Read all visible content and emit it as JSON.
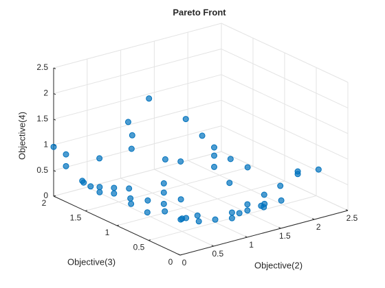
{
  "chart_data": {
    "type": "scatter3d",
    "title": "Pareto Front",
    "xlabel": "Objective(2)",
    "ylabel": "Objective(3)",
    "zlabel": "Objective(4)",
    "x": [
      0,
      0.09,
      0.09,
      0.4,
      0.05,
      0.07,
      0.08,
      0.12,
      0.12,
      0.24,
      0.24,
      0.37,
      0.39,
      0.4,
      0.95,
      0.64,
      0.7,
      0.69,
      0.91,
      0.7,
      0.7,
      0.7,
      0.46,
      0.36,
      0.62,
      0.95,
      0.86,
      1.31,
      1.46,
      1.45,
      1.45,
      1.45,
      1.6,
      1.76,
      1.49,
      0.5,
      0.48,
      0.56,
      0.73,
      0.75,
      0.9,
      1.15,
      1.15,
      1.26,
      1.38,
      1.38,
      1.63,
      1.54,
      1.49,
      1.53,
      1.87,
      1.79,
      2.13,
      2.13,
      2.44
    ],
    "y": [
      2,
      1.9,
      1.9,
      1.7,
      1.6,
      1.6,
      1.5,
      1.4,
      1.4,
      1.3,
      1.3,
      1.2,
      1.2,
      1.2,
      1.5,
      1.5,
      1.5,
      1.5,
      1.2,
      1.0,
      1.0,
      1.0,
      1.0,
      0.9,
      0.9,
      1.0,
      0.9,
      1.3,
      1.2,
      1.0,
      1.0,
      1.0,
      0.9,
      0.8,
      0.8,
      0.5,
      0.5,
      0.5,
      0.5,
      0.5,
      0.4,
      0.4,
      0.4,
      0.4,
      0.4,
      0.4,
      0.4,
      0.3,
      0.3,
      0.3,
      0.4,
      0.3,
      0.4,
      0.4,
      0.4
    ],
    "z": [
      0.96,
      0.84,
      0.61,
      0.77,
      0.51,
      0.47,
      0.45,
      0.48,
      0.38,
      0.48,
      0.37,
      0.48,
      0.28,
      0.17,
      1.86,
      1.51,
      1.23,
      0.97,
      0.86,
      0.58,
      0.4,
      0.18,
      0.33,
      0.19,
      0.12,
      0.92,
      0.27,
      1.45,
      1.13,
      1.02,
      0.86,
      0.64,
      0.8,
      0.64,
      0.43,
      0.25,
      0.24,
      0.24,
      0.23,
      0.11,
      0.15,
      0.2,
      0.09,
      0.15,
      0.16,
      0.28,
      0.38,
      0.29,
      0.27,
      0.23,
      0.47,
      0.27,
      0.66,
      0.61,
      0.59
    ],
    "xlim": [
      0,
      2.5
    ],
    "ylim": [
      0,
      2
    ],
    "zlim": [
      0,
      2.5
    ],
    "xticks": [
      0,
      0.5,
      1,
      1.5,
      2,
      2.5
    ],
    "yticks": [
      0,
      0.5,
      1,
      1.5,
      2
    ],
    "zticks": [
      0,
      0.5,
      1,
      1.5,
      2,
      2.5
    ],
    "color": "#0072BD",
    "grid": true
  }
}
